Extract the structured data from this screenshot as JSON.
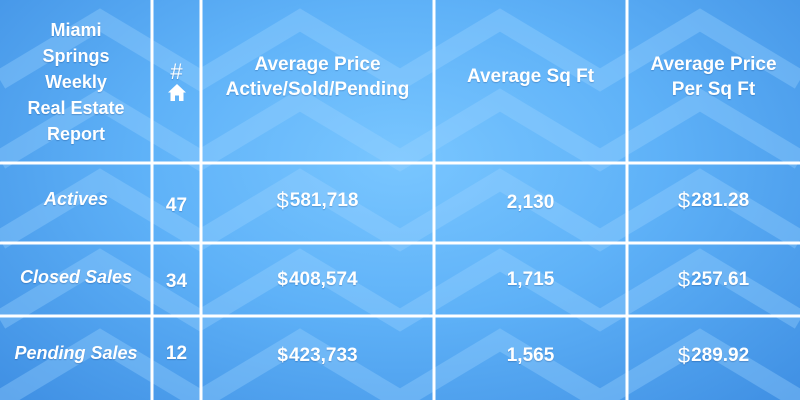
{
  "header": {
    "title_lines": [
      "Miami",
      "Springs",
      "Weekly",
      "Real Estate",
      "Report"
    ],
    "count_symbol": "#",
    "count_icon": "home-icon",
    "avg_price": [
      "Average Price",
      "Active/Sold/Pending"
    ],
    "avg_sqft": "Average Sq Ft",
    "avg_price_sqft": [
      "Average Price",
      "Per Sq Ft"
    ]
  },
  "rows": [
    {
      "label": "Actives",
      "count": "47",
      "avg_price": "581,718",
      "avg_sqft": "2,130",
      "price_per_sqft": "281.28"
    },
    {
      "label": "Closed Sales",
      "count": "34",
      "avg_price": "408,574",
      "avg_sqft": "1,715",
      "price_per_sqft": "257.61"
    },
    {
      "label": "Pending Sales",
      "count": "12",
      "avg_price": "423,733",
      "avg_sqft": "1,565",
      "price_per_sqft": "289.92"
    }
  ],
  "currency": "$",
  "colors": {
    "background": "#5fb2f8",
    "grid_lines": "#ffffff",
    "text": "#ffffff"
  }
}
